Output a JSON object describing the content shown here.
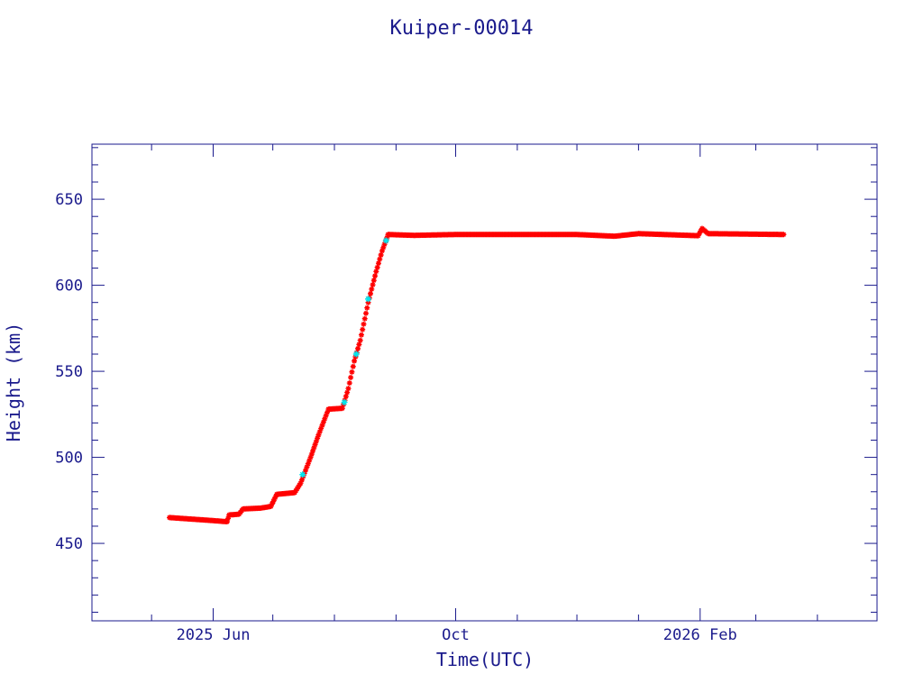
{
  "chart_data": {
    "type": "scatter",
    "title": "Kuiper-00014",
    "xlabel": "Time(UTC)",
    "ylabel": "Height (km)",
    "xlim": [
      "2025-04-01",
      "2026-05-01"
    ],
    "ylim": [
      405,
      682
    ],
    "y_ticks": [
      450,
      500,
      550,
      600,
      650
    ],
    "x_ticks": [
      {
        "date": "2025-06-01",
        "label": "2025 Jun"
      },
      {
        "date": "2025-10-01",
        "label": "Oct"
      },
      {
        "date": "2026-02-01",
        "label": "2026 Feb"
      }
    ],
    "grid": false,
    "colors": {
      "axis": "#1a1a8c",
      "primary_marker": "#ff0000",
      "secondary_marker": "#00e5ee",
      "background": "#ffffff"
    },
    "series": [
      {
        "marker": "red-star",
        "points": [
          [
            "2025-05-10",
            465.0
          ],
          [
            "2025-05-20",
            464.2
          ],
          [
            "2025-05-30",
            463.4
          ],
          [
            "2025-06-08",
            462.6
          ],
          [
            "2025-06-09",
            466.5
          ],
          [
            "2025-06-14",
            467.0
          ],
          [
            "2025-06-16",
            470.0
          ],
          [
            "2025-06-25",
            470.5
          ],
          [
            "2025-06-30",
            471.5
          ],
          [
            "2025-07-03",
            478.5
          ],
          [
            "2025-07-12",
            479.5
          ],
          [
            "2025-07-15",
            485.0
          ],
          [
            "2025-07-20",
            500.0
          ],
          [
            "2025-07-24",
            513.0
          ],
          [
            "2025-07-29",
            528.0
          ],
          [
            "2025-08-05",
            528.5
          ],
          [
            "2025-08-08",
            540.0
          ],
          [
            "2025-08-11",
            556.0
          ],
          [
            "2025-08-14",
            568.0
          ],
          [
            "2025-08-18",
            590.0
          ],
          [
            "2025-08-22",
            608.0
          ],
          [
            "2025-08-25",
            620.0
          ],
          [
            "2025-08-28",
            629.5
          ],
          [
            "2025-09-10",
            629.0
          ],
          [
            "2025-10-01",
            629.5
          ],
          [
            "2025-11-01",
            629.5
          ],
          [
            "2025-12-01",
            629.5
          ],
          [
            "2025-12-20",
            628.5
          ],
          [
            "2026-01-01",
            630.0
          ],
          [
            "2026-01-31",
            628.8
          ],
          [
            "2026-02-02",
            633.0
          ],
          [
            "2026-02-05",
            630.0
          ],
          [
            "2026-03-15",
            629.5
          ]
        ]
      },
      {
        "marker": "cyan-star",
        "points": [
          [
            "2025-07-16",
            490.0
          ],
          [
            "2025-08-06",
            532.0
          ],
          [
            "2025-08-12",
            560.0
          ],
          [
            "2025-08-18",
            592.0
          ],
          [
            "2025-08-27",
            626.0
          ]
        ]
      }
    ]
  }
}
